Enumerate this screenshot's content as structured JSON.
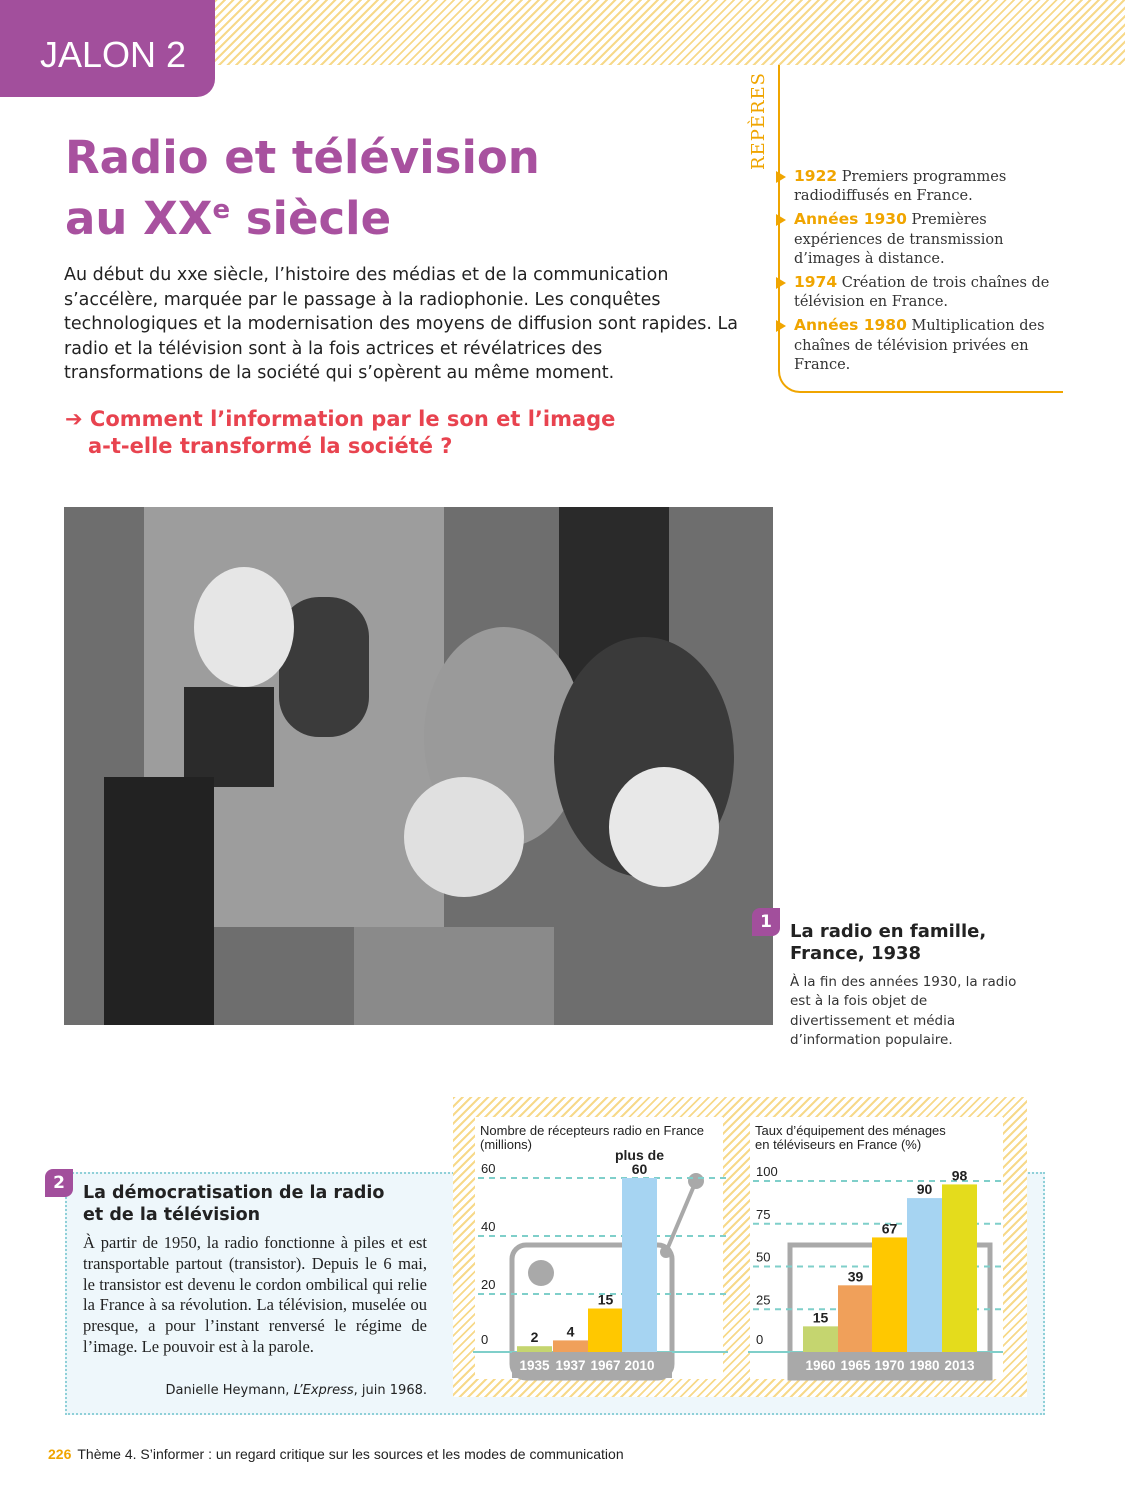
{
  "header": {
    "jalon": "JALON 2"
  },
  "title": {
    "line1": "Radio et télévision",
    "line2_pre": "au XX",
    "line2_sup": "e",
    "line2_post": " siècle"
  },
  "intro": "Au début du xxe siècle, l’histoire des médias et de la communication s’accélère, marquée par le passage à la radiophonie. Les conquêtes technologiques et la modernisation des moyens de diffusion sont rapides. La radio et la télévision sont à la fois actrices et révélatrices des transformations de la société qui s’opèrent au même moment.",
  "question": {
    "arrow": "➔",
    "line1": "Comment l’information par le son et l’image",
    "line2": "a-t-elle transformé la société ?"
  },
  "reperes": {
    "label": "REPÈRES",
    "items": [
      {
        "year": "1922",
        "text": " Premiers programmes radiodiffusés en France."
      },
      {
        "year": "Années 1930",
        "text": " Premières expériences de transmission d’images à distance."
      },
      {
        "year": "1974",
        "text": " Création de trois chaînes de télévision en France."
      },
      {
        "year": "Années 1980",
        "text": " Multiplication des chaînes de télévision privées en France."
      }
    ]
  },
  "doc1": {
    "number": "1",
    "title_line1": "La radio en famille,",
    "title_line2": "France, 1938",
    "text": "À la fin des années 1930, la radio est à la fois objet de divertissement et média d’information populaire."
  },
  "doc2": {
    "number": "2",
    "title_line1": "La démocratisation de la radio",
    "title_line2": "et de la télévision",
    "text": "À partir de 1950, la radio fonctionne à piles et est transportable partout (transistor). Depuis le 6 mai, le transistor est devenu le cordon ombilical qui relie la France à sa révolution. La télévision, muselée ou presque, a pour l’instant renversé le régime de l’image. Le pouvoir est à la parole.",
    "source_author": "Danielle Heymann, ",
    "source_pub": "L’Express",
    "source_date": ", juin 1968."
  },
  "chart_data": [
    {
      "type": "bar",
      "title": "Nombre de récepteurs radio en France",
      "title2": "(millions)",
      "categories": [
        "1935",
        "1937",
        "1967",
        "2010"
      ],
      "values": [
        2,
        4,
        15,
        60
      ],
      "labels": [
        "2",
        "4",
        "15",
        "60"
      ],
      "annotation": "plus de",
      "yticks": [
        0,
        20,
        40,
        60
      ],
      "ylim": [
        0,
        60
      ],
      "grid": true,
      "colors": [
        "#c5d56f",
        "#f0a05a",
        "#ffc800",
        "#a6d4f2"
      ]
    },
    {
      "type": "bar",
      "title": "Taux d’équipement des ménages",
      "title2": "en téléviseurs en France (%)",
      "categories": [
        "1960",
        "1965",
        "1970",
        "1980",
        "2013"
      ],
      "values": [
        15,
        39,
        67,
        90,
        98
      ],
      "labels": [
        "15",
        "39",
        "67",
        "90",
        "98"
      ],
      "yticks": [
        0,
        25,
        50,
        75,
        100
      ],
      "ylim": [
        0,
        100
      ],
      "grid": true,
      "colors": [
        "#c5d56f",
        "#f0a05a",
        "#ffc800",
        "#a6d4f2",
        "#e4dc1c"
      ]
    }
  ],
  "footer": {
    "page": "226",
    "text": "Thème 4. S’informer : un regard critique sur les sources et les modes de communication"
  },
  "colors": {
    "purple": "#a24f9c",
    "orange": "#f0a500",
    "red": "#e8434f"
  }
}
